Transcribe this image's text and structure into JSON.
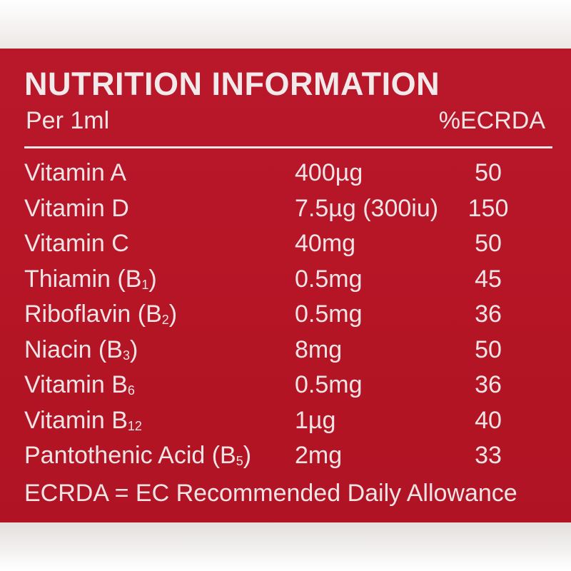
{
  "header": {
    "title": "NUTRITION INFORMATION",
    "per_label": "Per 1ml",
    "column_label": "%ECRDA"
  },
  "rows": [
    {
      "name": "Vitamin A",
      "sub": "",
      "suffix": "",
      "amount": "400µg",
      "pct": "50"
    },
    {
      "name": "Vitamin D",
      "sub": "",
      "suffix": "",
      "amount": "7.5µg (300iu)",
      "pct": "150"
    },
    {
      "name": "Vitamin C",
      "sub": "",
      "suffix": "",
      "amount": "40mg",
      "pct": "50"
    },
    {
      "name": "Thiamin (B",
      "sub": "1",
      "suffix": ")",
      "amount": "0.5mg",
      "pct": "45"
    },
    {
      "name": "Riboflavin (B",
      "sub": "2",
      "suffix": ")",
      "amount": "0.5mg",
      "pct": "36"
    },
    {
      "name": "Niacin (B",
      "sub": "3",
      "suffix": ")",
      "amount": "8mg",
      "pct": "50"
    },
    {
      "name": "Vitamin B",
      "sub": "6",
      "suffix": "",
      "amount": "0.5mg",
      "pct": "36"
    },
    {
      "name": "Vitamin B",
      "sub": "12",
      "suffix": "",
      "amount": "1µg",
      "pct": "40"
    },
    {
      "name": "Pantothenic Acid (B",
      "sub": "5",
      "suffix": ")",
      "amount": "2mg",
      "pct": "33"
    }
  ],
  "footnote": "ECRDA = EC Recommended Daily Allowance",
  "colors": {
    "panel": "#b71627",
    "text": "#eee4e6"
  }
}
